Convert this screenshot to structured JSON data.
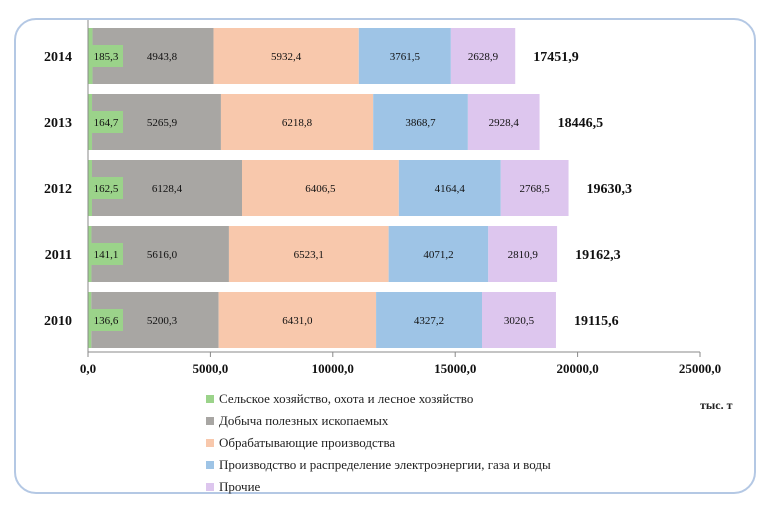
{
  "chart_data": {
    "type": "bar",
    "orientation": "horizontal",
    "stacked": true,
    "categories": [
      "2014",
      "2013",
      "2012",
      "2011",
      "2010"
    ],
    "series": [
      {
        "name": "Сельское хозяйство, охота и лесное хозяйство",
        "color": "#9bd38a",
        "values": [
          185.3,
          164.7,
          162.5,
          141.1,
          136.6
        ],
        "labels": [
          "185,3",
          "164,7",
          "162,5",
          "141,1",
          "136,6"
        ]
      },
      {
        "name": "Добыча полезных ископаемых",
        "color": "#a8a6a3",
        "values": [
          4943.8,
          5265.9,
          6128.4,
          5616.0,
          5200.3
        ],
        "labels": [
          "4943,8",
          "5265,9",
          "6128,4",
          "5616,0",
          "5200,3"
        ]
      },
      {
        "name": "Обрабатывающие производства",
        "color": "#f8c8ac",
        "values": [
          5932.4,
          6218.8,
          6406.5,
          6523.1,
          6431.0
        ],
        "labels": [
          "5932,4",
          "6218,8",
          "6406,5",
          "6523,1",
          "6431,0"
        ]
      },
      {
        "name": "Производство и распределение электроэнергии,  газа и воды",
        "color": "#9ec4e6",
        "values": [
          3761.5,
          3868.7,
          4164.4,
          4071.2,
          4327.2
        ],
        "labels": [
          "3761,5",
          "3868,7",
          "4164,4",
          "4071,2",
          "4327,2"
        ]
      },
      {
        "name": "Прочие",
        "color": "#ddc6ee",
        "values": [
          2628.9,
          2928.4,
          2768.5,
          2810.9,
          3020.5
        ],
        "labels": [
          "2628,9",
          "2928,4",
          "2768,5",
          "2810,9",
          "3020,5"
        ]
      }
    ],
    "totals": [
      "17451,9",
      "18446,5",
      "19630,3",
      "19162,3",
      "19115,6"
    ],
    "xlim": [
      0,
      25000
    ],
    "xticks": [
      0,
      5000,
      10000,
      15000,
      20000,
      25000
    ],
    "xtick_labels": [
      "0,0",
      "5000,0",
      "10000,0",
      "15000,0",
      "20000,0",
      "25000,0"
    ],
    "unit_label": "тыс. т",
    "legend_position": "bottom",
    "grid": false
  }
}
